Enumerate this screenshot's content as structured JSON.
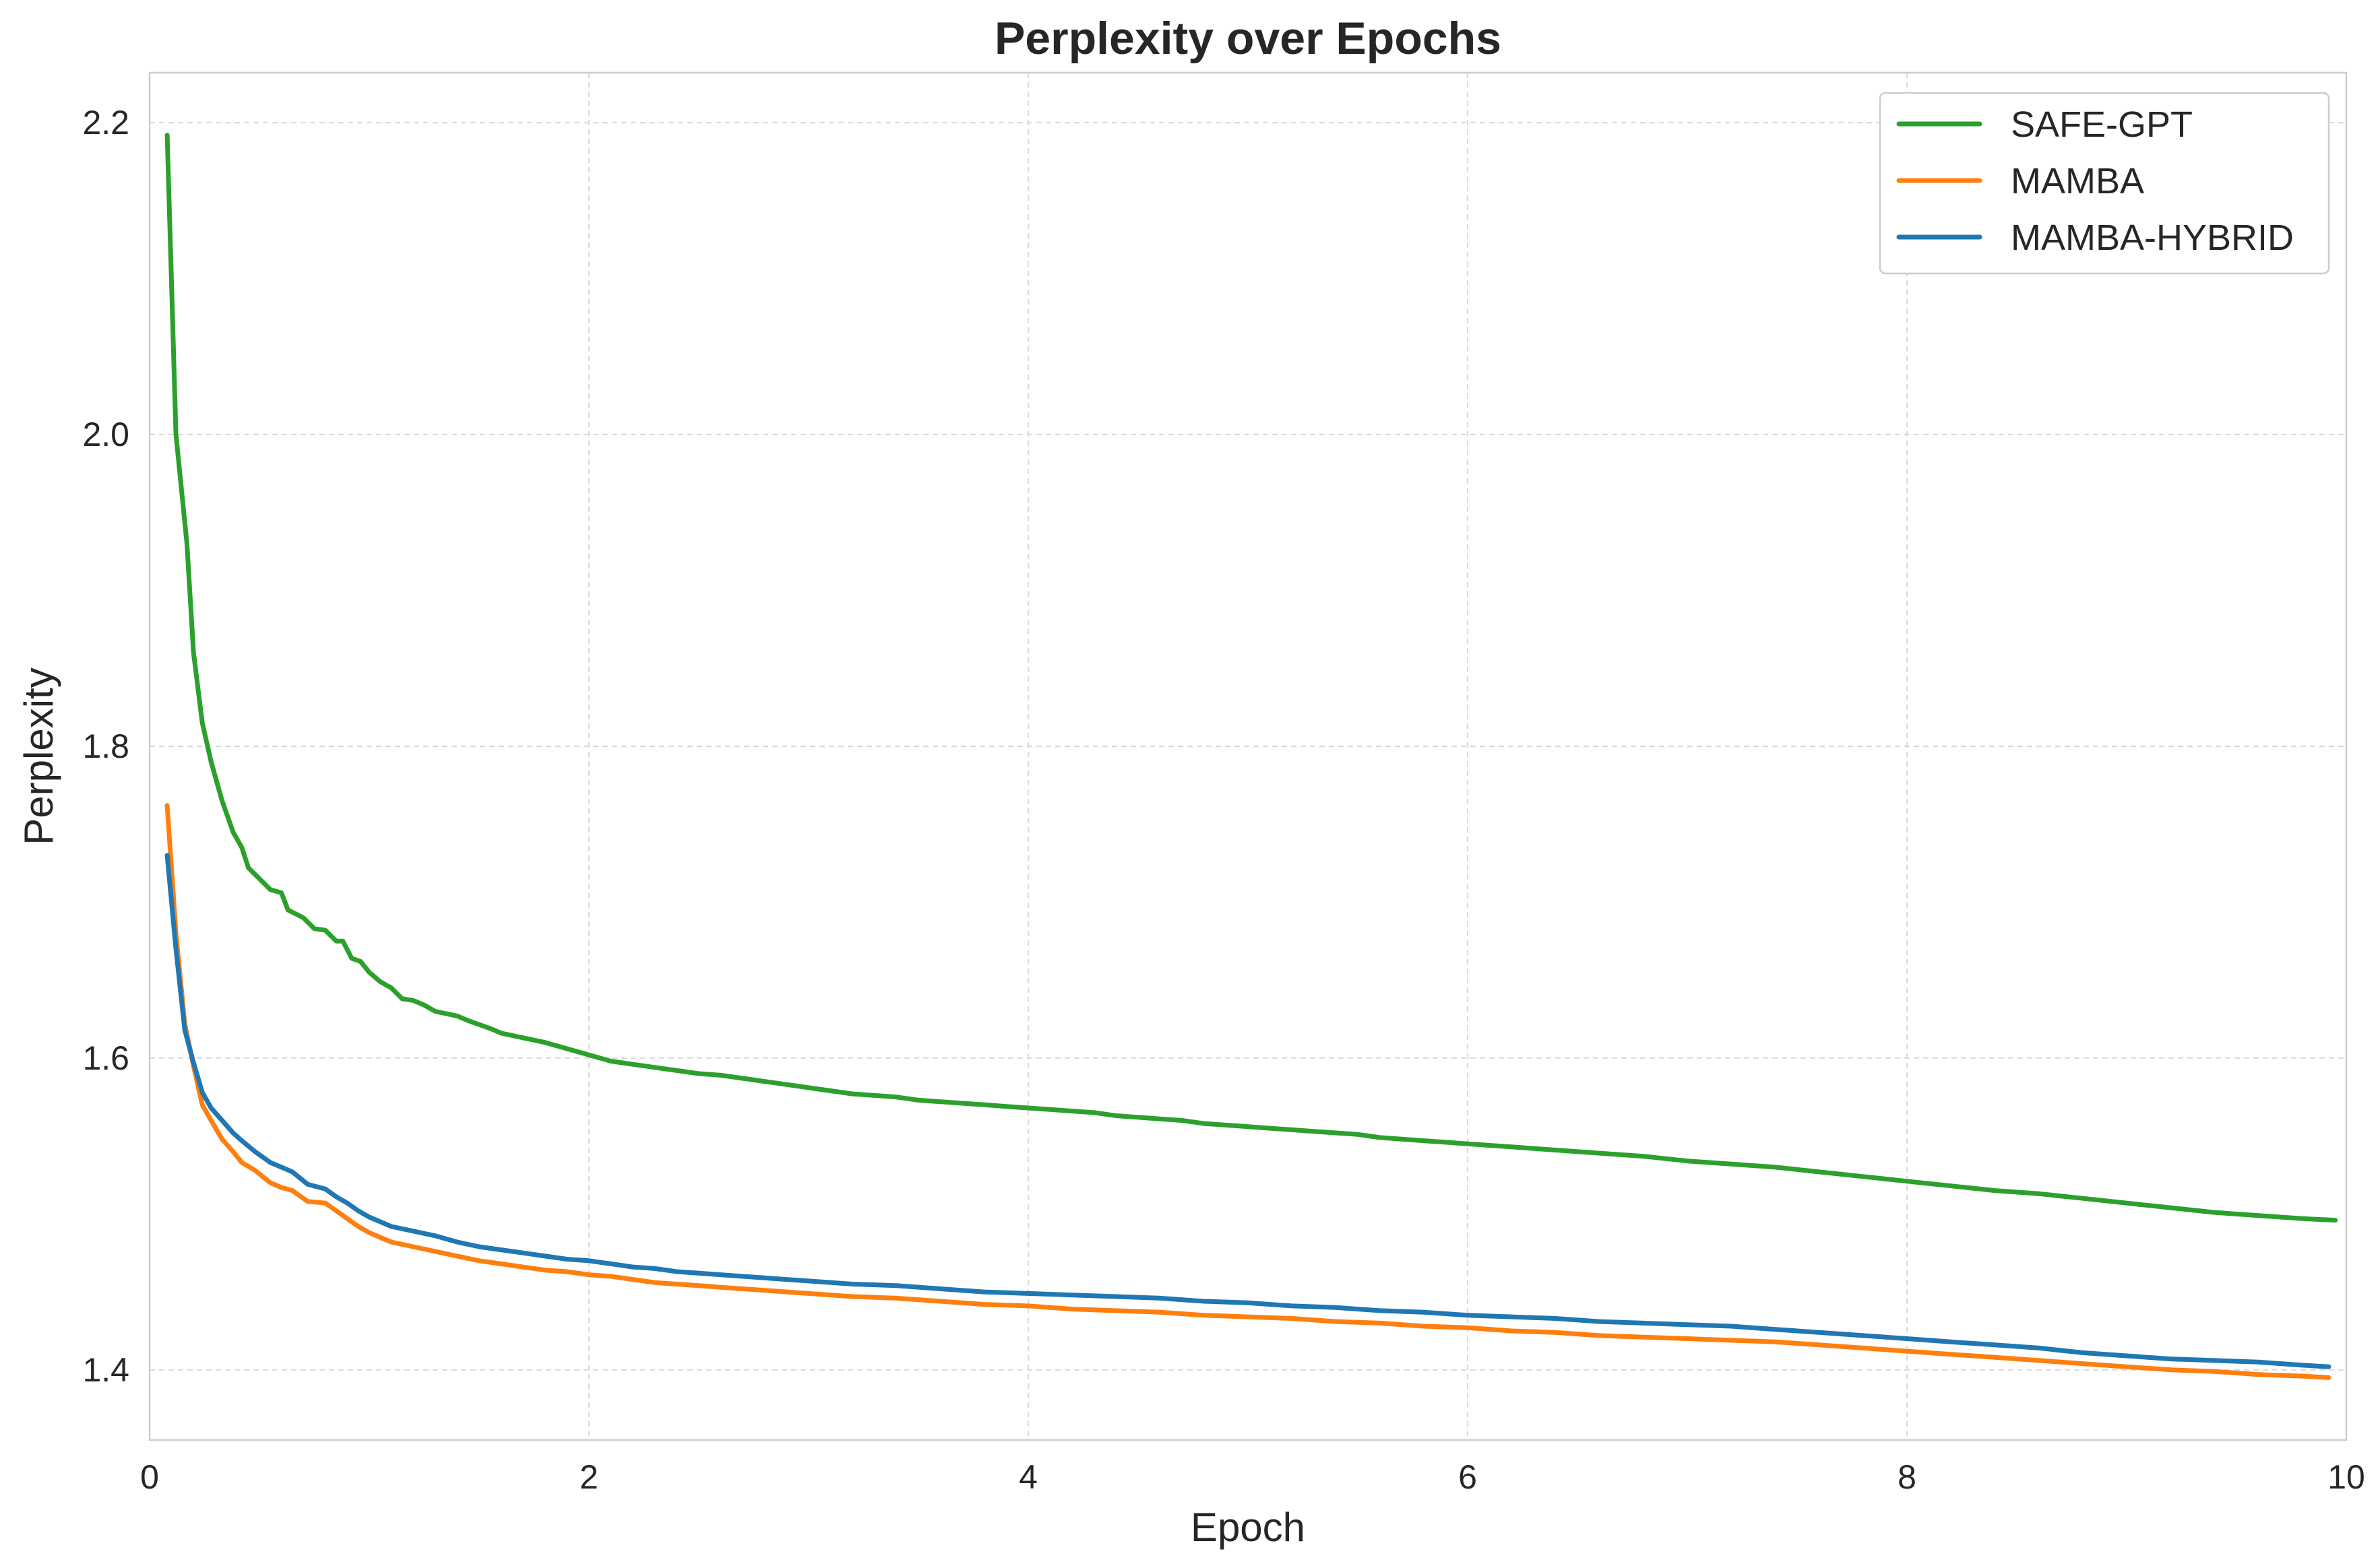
{
  "chart_data": {
    "type": "line",
    "title": "Perplexity over Epochs",
    "xlabel": "Epoch",
    "ylabel": "Perplexity",
    "xlim": [
      0,
      10
    ],
    "ylim": [
      1.355,
      2.232
    ],
    "xticks": [
      0,
      2,
      4,
      6,
      8,
      10
    ],
    "yticks": [
      1.4,
      1.6,
      1.8,
      2.0,
      2.2
    ],
    "xtick_labels": [
      "0",
      "2",
      "4",
      "6",
      "8",
      "10"
    ],
    "ytick_labels": [
      "1.4",
      "1.6",
      "1.8",
      "2.0",
      "2.2"
    ],
    "grid": true,
    "legend_position": "top-right",
    "series": [
      {
        "name": "SAFE-GPT",
        "color": "#2ca02c",
        "points": [
          [
            0.08,
            2.192
          ],
          [
            0.12,
            2.0
          ],
          [
            0.17,
            1.93
          ],
          [
            0.2,
            1.86
          ],
          [
            0.24,
            1.815
          ],
          [
            0.28,
            1.79
          ],
          [
            0.33,
            1.765
          ],
          [
            0.38,
            1.745
          ],
          [
            0.42,
            1.735
          ],
          [
            0.45,
            1.722
          ],
          [
            0.5,
            1.715
          ],
          [
            0.55,
            1.708
          ],
          [
            0.6,
            1.706
          ],
          [
            0.63,
            1.695
          ],
          [
            0.7,
            1.69
          ],
          [
            0.75,
            1.683
          ],
          [
            0.8,
            1.682
          ],
          [
            0.85,
            1.675
          ],
          [
            0.88,
            1.675
          ],
          [
            0.92,
            1.664
          ],
          [
            0.96,
            1.662
          ],
          [
            1.0,
            1.655
          ],
          [
            1.05,
            1.649
          ],
          [
            1.1,
            1.645
          ],
          [
            1.15,
            1.638
          ],
          [
            1.2,
            1.637
          ],
          [
            1.25,
            1.634
          ],
          [
            1.3,
            1.63
          ],
          [
            1.4,
            1.627
          ],
          [
            1.45,
            1.624
          ],
          [
            1.55,
            1.619
          ],
          [
            1.6,
            1.616
          ],
          [
            1.7,
            1.613
          ],
          [
            1.8,
            1.61
          ],
          [
            1.9,
            1.606
          ],
          [
            2.0,
            1.602
          ],
          [
            2.1,
            1.598
          ],
          [
            2.2,
            1.596
          ],
          [
            2.3,
            1.594
          ],
          [
            2.4,
            1.592
          ],
          [
            2.5,
            1.59
          ],
          [
            2.6,
            1.589
          ],
          [
            2.7,
            1.587
          ],
          [
            2.8,
            1.585
          ],
          [
            2.9,
            1.583
          ],
          [
            3.0,
            1.581
          ],
          [
            3.1,
            1.579
          ],
          [
            3.2,
            1.577
          ],
          [
            3.3,
            1.576
          ],
          [
            3.4,
            1.575
          ],
          [
            3.5,
            1.573
          ],
          [
            3.6,
            1.572
          ],
          [
            3.7,
            1.571
          ],
          [
            3.8,
            1.57
          ],
          [
            3.9,
            1.569
          ],
          [
            4.0,
            1.568
          ],
          [
            4.1,
            1.567
          ],
          [
            4.2,
            1.566
          ],
          [
            4.3,
            1.565
          ],
          [
            4.4,
            1.563
          ],
          [
            4.5,
            1.562
          ],
          [
            4.6,
            1.561
          ],
          [
            4.7,
            1.56
          ],
          [
            4.8,
            1.558
          ],
          [
            4.9,
            1.557
          ],
          [
            5.0,
            1.556
          ],
          [
            5.1,
            1.555
          ],
          [
            5.2,
            1.554
          ],
          [
            5.3,
            1.553
          ],
          [
            5.4,
            1.552
          ],
          [
            5.5,
            1.551
          ],
          [
            5.6,
            1.549
          ],
          [
            5.7,
            1.548
          ],
          [
            5.8,
            1.547
          ],
          [
            5.9,
            1.546
          ],
          [
            6.0,
            1.545
          ],
          [
            6.2,
            1.543
          ],
          [
            6.4,
            1.541
          ],
          [
            6.6,
            1.539
          ],
          [
            6.8,
            1.537
          ],
          [
            7.0,
            1.534
          ],
          [
            7.2,
            1.532
          ],
          [
            7.4,
            1.53
          ],
          [
            7.6,
            1.527
          ],
          [
            7.8,
            1.524
          ],
          [
            8.0,
            1.521
          ],
          [
            8.2,
            1.518
          ],
          [
            8.4,
            1.515
          ],
          [
            8.6,
            1.513
          ],
          [
            8.8,
            1.51
          ],
          [
            9.0,
            1.507
          ],
          [
            9.2,
            1.504
          ],
          [
            9.4,
            1.501
          ],
          [
            9.6,
            1.499
          ],
          [
            9.8,
            1.497
          ],
          [
            9.95,
            1.496
          ]
        ]
      },
      {
        "name": "MAMBA",
        "color": "#ff7f0e",
        "points": [
          [
            0.08,
            1.762
          ],
          [
            0.12,
            1.68
          ],
          [
            0.16,
            1.622
          ],
          [
            0.2,
            1.595
          ],
          [
            0.24,
            1.57
          ],
          [
            0.28,
            1.56
          ],
          [
            0.33,
            1.548
          ],
          [
            0.38,
            1.54
          ],
          [
            0.42,
            1.533
          ],
          [
            0.48,
            1.528
          ],
          [
            0.55,
            1.52
          ],
          [
            0.6,
            1.517
          ],
          [
            0.65,
            1.515
          ],
          [
            0.72,
            1.508
          ],
          [
            0.8,
            1.507
          ],
          [
            0.85,
            1.502
          ],
          [
            0.9,
            1.497
          ],
          [
            0.95,
            1.492
          ],
          [
            1.0,
            1.488
          ],
          [
            1.05,
            1.485
          ],
          [
            1.1,
            1.482
          ],
          [
            1.2,
            1.479
          ],
          [
            1.3,
            1.476
          ],
          [
            1.4,
            1.473
          ],
          [
            1.5,
            1.47
          ],
          [
            1.6,
            1.468
          ],
          [
            1.7,
            1.466
          ],
          [
            1.8,
            1.464
          ],
          [
            1.9,
            1.463
          ],
          [
            2.0,
            1.461
          ],
          [
            2.1,
            1.46
          ],
          [
            2.2,
            1.458
          ],
          [
            2.3,
            1.456
          ],
          [
            2.4,
            1.455
          ],
          [
            2.5,
            1.454
          ],
          [
            2.6,
            1.453
          ],
          [
            2.7,
            1.452
          ],
          [
            2.8,
            1.451
          ],
          [
            2.9,
            1.45
          ],
          [
            3.0,
            1.449
          ],
          [
            3.2,
            1.447
          ],
          [
            3.4,
            1.446
          ],
          [
            3.6,
            1.444
          ],
          [
            3.8,
            1.442
          ],
          [
            4.0,
            1.441
          ],
          [
            4.2,
            1.439
          ],
          [
            4.4,
            1.438
          ],
          [
            4.6,
            1.437
          ],
          [
            4.8,
            1.435
          ],
          [
            5.0,
            1.434
          ],
          [
            5.2,
            1.433
          ],
          [
            5.4,
            1.431
          ],
          [
            5.6,
            1.43
          ],
          [
            5.8,
            1.428
          ],
          [
            6.0,
            1.427
          ],
          [
            6.2,
            1.425
          ],
          [
            6.4,
            1.424
          ],
          [
            6.6,
            1.422
          ],
          [
            6.8,
            1.421
          ],
          [
            7.0,
            1.42
          ],
          [
            7.2,
            1.419
          ],
          [
            7.4,
            1.418
          ],
          [
            7.6,
            1.416
          ],
          [
            7.8,
            1.414
          ],
          [
            8.0,
            1.412
          ],
          [
            8.2,
            1.41
          ],
          [
            8.4,
            1.408
          ],
          [
            8.6,
            1.406
          ],
          [
            8.8,
            1.404
          ],
          [
            9.0,
            1.402
          ],
          [
            9.2,
            1.4
          ],
          [
            9.4,
            1.399
          ],
          [
            9.6,
            1.397
          ],
          [
            9.8,
            1.396
          ],
          [
            9.92,
            1.395
          ]
        ]
      },
      {
        "name": "MAMBA-HYBRID",
        "color": "#1f77b4",
        "points": [
          [
            0.08,
            1.73
          ],
          [
            0.12,
            1.67
          ],
          [
            0.16,
            1.618
          ],
          [
            0.2,
            1.597
          ],
          [
            0.24,
            1.578
          ],
          [
            0.28,
            1.568
          ],
          [
            0.33,
            1.56
          ],
          [
            0.38,
            1.552
          ],
          [
            0.42,
            1.547
          ],
          [
            0.48,
            1.54
          ],
          [
            0.55,
            1.533
          ],
          [
            0.6,
            1.53
          ],
          [
            0.65,
            1.527
          ],
          [
            0.72,
            1.519
          ],
          [
            0.8,
            1.516
          ],
          [
            0.85,
            1.511
          ],
          [
            0.9,
            1.507
          ],
          [
            0.95,
            1.502
          ],
          [
            1.0,
            1.498
          ],
          [
            1.05,
            1.495
          ],
          [
            1.1,
            1.492
          ],
          [
            1.2,
            1.489
          ],
          [
            1.3,
            1.486
          ],
          [
            1.4,
            1.482
          ],
          [
            1.5,
            1.479
          ],
          [
            1.6,
            1.477
          ],
          [
            1.7,
            1.475
          ],
          [
            1.8,
            1.473
          ],
          [
            1.9,
            1.471
          ],
          [
            2.0,
            1.47
          ],
          [
            2.1,
            1.468
          ],
          [
            2.2,
            1.466
          ],
          [
            2.3,
            1.465
          ],
          [
            2.4,
            1.463
          ],
          [
            2.5,
            1.462
          ],
          [
            2.6,
            1.461
          ],
          [
            2.7,
            1.46
          ],
          [
            2.8,
            1.459
          ],
          [
            2.9,
            1.458
          ],
          [
            3.0,
            1.457
          ],
          [
            3.2,
            1.455
          ],
          [
            3.4,
            1.454
          ],
          [
            3.6,
            1.452
          ],
          [
            3.8,
            1.45
          ],
          [
            4.0,
            1.449
          ],
          [
            4.2,
            1.448
          ],
          [
            4.4,
            1.447
          ],
          [
            4.6,
            1.446
          ],
          [
            4.8,
            1.444
          ],
          [
            5.0,
            1.443
          ],
          [
            5.2,
            1.441
          ],
          [
            5.4,
            1.44
          ],
          [
            5.6,
            1.438
          ],
          [
            5.8,
            1.437
          ],
          [
            6.0,
            1.435
          ],
          [
            6.2,
            1.434
          ],
          [
            6.4,
            1.433
          ],
          [
            6.6,
            1.431
          ],
          [
            6.8,
            1.43
          ],
          [
            7.0,
            1.429
          ],
          [
            7.2,
            1.428
          ],
          [
            7.4,
            1.426
          ],
          [
            7.6,
            1.424
          ],
          [
            7.8,
            1.422
          ],
          [
            8.0,
            1.42
          ],
          [
            8.2,
            1.418
          ],
          [
            8.4,
            1.416
          ],
          [
            8.6,
            1.414
          ],
          [
            8.8,
            1.411
          ],
          [
            9.0,
            1.409
          ],
          [
            9.2,
            1.407
          ],
          [
            9.4,
            1.406
          ],
          [
            9.6,
            1.405
          ],
          [
            9.8,
            1.403
          ],
          [
            9.92,
            1.402
          ]
        ]
      }
    ]
  }
}
